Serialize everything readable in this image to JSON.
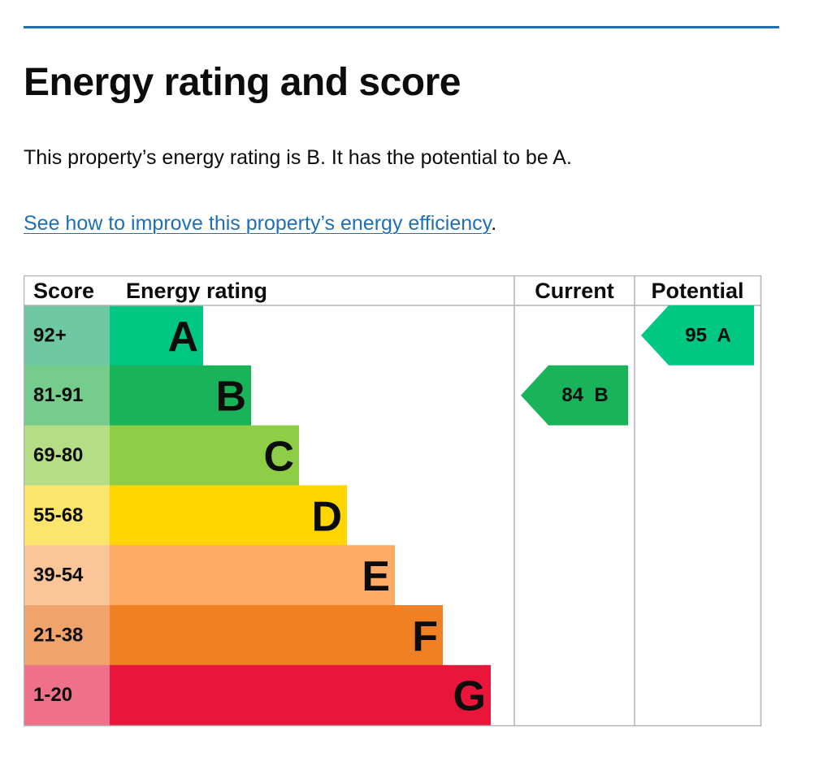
{
  "page": {
    "title": "Energy rating and score",
    "summary": "This property’s energy rating is B. It has the potential to be A.",
    "improve_link": "See how to improve this property’s energy efficiency",
    "improve_suffix": "."
  },
  "chart_data": {
    "type": "table",
    "headers": {
      "score": "Score",
      "rating": "Energy rating",
      "current": "Current",
      "potential": "Potential"
    },
    "bands": [
      {
        "letter": "A",
        "range": "92+",
        "color": "#00c781",
        "score_color": "#6ec8a1"
      },
      {
        "letter": "B",
        "range": "81-91",
        "color": "#19b459",
        "score_color": "#76cc8c"
      },
      {
        "letter": "C",
        "range": "69-80",
        "color": "#8dce46",
        "score_color": "#b4dd85"
      },
      {
        "letter": "D",
        "range": "55-68",
        "color": "#ffd500",
        "score_color": "#fce56c"
      },
      {
        "letter": "E",
        "range": "39-54",
        "color": "#fcaa65",
        "score_color": "#fbc59a"
      },
      {
        "letter": "F",
        "range": "21-38",
        "color": "#ef8023",
        "score_color": "#f0a36a"
      },
      {
        "letter": "G",
        "range": "1-20",
        "color": "#e9153b",
        "score_color": "#ef7189"
      }
    ],
    "current": {
      "score": 84,
      "rating": "B",
      "label": "84  B",
      "color": "#19b459"
    },
    "potential": {
      "score": 95,
      "rating": "A",
      "label": "95  A",
      "color": "#00c781"
    }
  }
}
